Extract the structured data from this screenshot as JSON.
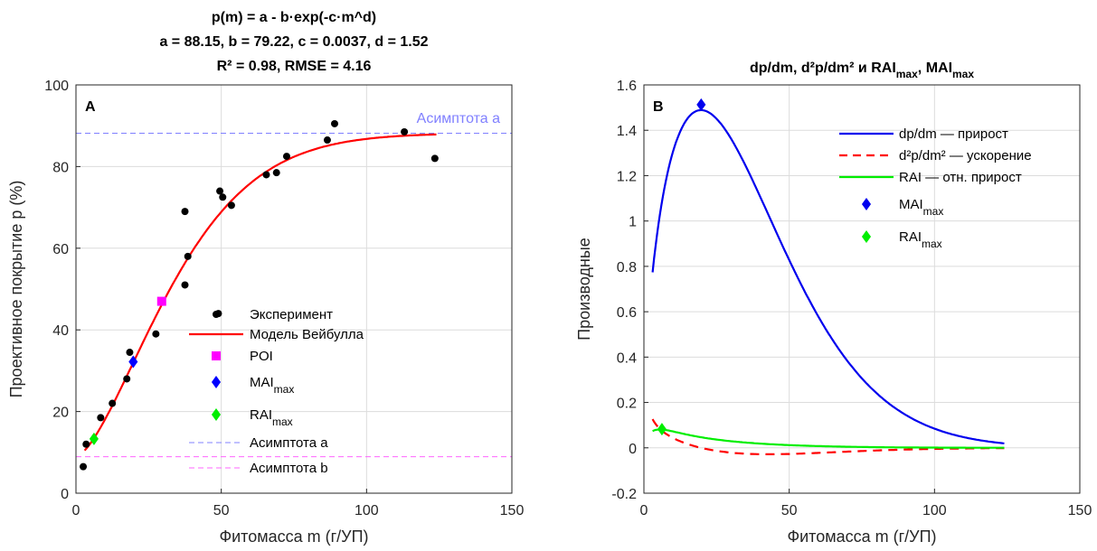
{
  "chart_data": [
    {
      "panel_label": "A",
      "type": "scatter",
      "title_lines": [
        "p(m) = a - b·exp(-c·m^d)",
        "a = 88.15, b = 79.22, c = 0.0037, d = 1.52",
        "R² = 0.98, RMSE = 4.16"
      ],
      "xlabel": "Фитомасса m (г/УП)",
      "ylabel": "Проективное покрытие p (%)",
      "xlim": [
        0,
        150
      ],
      "ylim": [
        0,
        100
      ],
      "xticks": [
        0,
        50,
        100,
        150
      ],
      "yticks": [
        0,
        20,
        40,
        60,
        80,
        100
      ],
      "grid": true,
      "model": {
        "a": 88.15,
        "b": 79.22,
        "c": 0.0037,
        "d": 1.52,
        "m_range": [
          3,
          124
        ],
        "color": "#ff0000"
      },
      "asymptote_a": {
        "value": 88.15,
        "label": "Асимптота a",
        "color": "#8080ff"
      },
      "asymptote_b": {
        "value": 8.93,
        "color": "#ff66ff"
      },
      "series": [
        {
          "name": "Эксперимент",
          "color": "#000000",
          "points": [
            [
              2.5,
              6.5
            ],
            [
              3.5,
              12
            ],
            [
              8.5,
              18.5
            ],
            [
              12.5,
              22
            ],
            [
              17.5,
              28
            ],
            [
              18.5,
              34.5
            ],
            [
              27.5,
              39
            ],
            [
              37.5,
              51
            ],
            [
              37.5,
              69
            ],
            [
              38.5,
              58
            ],
            [
              49,
              44
            ],
            [
              49.5,
              74
            ],
            [
              50.5,
              72.5
            ],
            [
              53.5,
              70.5
            ],
            [
              65.5,
              78
            ],
            [
              69,
              78.5
            ],
            [
              72.5,
              82.5
            ],
            [
              86.5,
              86.5
            ],
            [
              89,
              90.5
            ],
            [
              113,
              88.5
            ],
            [
              123.5,
              82
            ]
          ]
        },
        {
          "name": "POI",
          "color": "#ff00ff",
          "marker": "square",
          "x": 29.5,
          "y": 47
        },
        {
          "name": "MAI",
          "sub": "max",
          "color": "#0000ff",
          "marker": "diamond",
          "x": 19.7,
          "y": 32.2
        },
        {
          "name": "RAI",
          "sub": "max",
          "color": "#00ee00",
          "marker": "diamond",
          "x": 6.2,
          "y": 13.3
        }
      ],
      "legend": [
        {
          "label": "Эксперимент",
          "kind": "dot",
          "color": "#000000"
        },
        {
          "label": "Модель Вейбулла",
          "kind": "line",
          "color": "#ff0000"
        },
        {
          "label": "POI",
          "kind": "square",
          "color": "#ff00ff"
        },
        {
          "label": "MAI",
          "sub": "max",
          "kind": "diamond",
          "color": "#0000ff"
        },
        {
          "label": "RAI",
          "sub": "max",
          "kind": "diamond",
          "color": "#00ee00"
        },
        {
          "label": "Асимптота a",
          "kind": "dash",
          "color": "#8080ff"
        },
        {
          "label": "Асимптота b",
          "kind": "dash",
          "color": "#ff66ff"
        }
      ],
      "legend_position": "bottom-right"
    },
    {
      "panel_label": "B",
      "type": "line",
      "title": "dp/dm, d²p/dm² и RAI",
      "title_sub1": "max",
      "title_mid": ", MAI",
      "title_sub2": "max",
      "xlabel": "Фитомасса m (г/УП)",
      "ylabel": "Производные",
      "xlim": [
        0,
        150
      ],
      "ylim": [
        -0.2,
        1.6
      ],
      "xticks": [
        0,
        50,
        100,
        150
      ],
      "yticks": [
        -0.2,
        0,
        0.2,
        0.4,
        0.6,
        0.8,
        1,
        1.2,
        1.4,
        1.6
      ],
      "grid": true,
      "model": {
        "a": 88.15,
        "b": 79.22,
        "c": 0.0037,
        "d": 1.52,
        "m_range": [
          3,
          124
        ]
      },
      "series": [
        {
          "name": "dp/dm — прирост",
          "kind": "dpdm",
          "color": "#0000ee"
        },
        {
          "name": "d²p/dm² — ускорение",
          "kind": "d2p",
          "color": "#ff0000",
          "dashed": true
        },
        {
          "name": "RAI — отн. прирост",
          "kind": "rai",
          "color": "#00ee00"
        }
      ],
      "markers": [
        {
          "name": "MAI",
          "sub": "max",
          "color": "#0000ee",
          "x": 19.7,
          "y": 1.513
        },
        {
          "name": "RAI",
          "sub": "max",
          "color": "#00ee00",
          "x": 6.2,
          "y": 0.082
        }
      ],
      "legend": [
        {
          "label": "dp/dm — прирост",
          "kind": "line",
          "color": "#0000ee"
        },
        {
          "label": "d²p/dm² — ускорение",
          "kind": "dashline",
          "color": "#ff0000"
        },
        {
          "label": "RAI — отн. прирост",
          "kind": "line",
          "color": "#00ee00"
        },
        {
          "label": "MAI",
          "sub": "max",
          "kind": "diamond",
          "color": "#0000ee"
        },
        {
          "label": "RAI",
          "sub": "max",
          "kind": "diamond",
          "color": "#00ee00"
        }
      ],
      "legend_position": "top-right"
    }
  ]
}
